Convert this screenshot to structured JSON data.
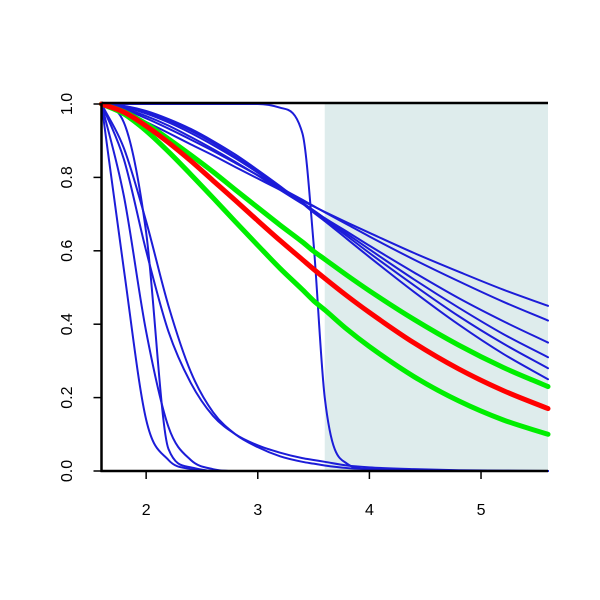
{
  "chart_data": {
    "type": "line",
    "x": [
      1.6,
      1.8,
      2.0,
      2.2,
      2.4,
      2.6,
      2.8,
      3.0,
      3.2,
      3.4,
      3.5,
      3.6,
      3.8,
      4.0,
      4.4,
      4.8,
      5.2,
      5.6
    ],
    "xlim": [
      1.6,
      5.6
    ],
    "xticks": [
      2,
      3,
      4,
      5
    ],
    "ylim": [
      0,
      1
    ],
    "yticks": [
      {
        "value": 0,
        "label": "0.0"
      },
      0.2,
      0.4,
      0.6,
      0.8,
      {
        "value": 1,
        "label": "1.0"
      }
    ],
    "shaded_region": {
      "xlim": [
        3.6,
        5.6
      ],
      "color": "#deecec"
    },
    "series": [
      {
        "color": "#1c1cd8",
        "width": 2,
        "values": [
          1,
          0.55,
          0.14,
          0.03,
          0.005,
          0,
          0,
          0,
          0,
          0,
          0,
          0,
          0,
          0,
          0,
          0,
          0,
          0
        ]
      },
      {
        "color": "#1c1cd8",
        "width": 2,
        "values": [
          1,
          0.75,
          0.38,
          0.12,
          0.03,
          0.005,
          0,
          0,
          0,
          0,
          0,
          0,
          0,
          0,
          0,
          0,
          0,
          0
        ]
      },
      {
        "color": "#1c1cd8",
        "width": 2,
        "values": [
          1,
          0.85,
          0.6,
          0.38,
          0.24,
          0.15,
          0.1,
          0.07,
          0.05,
          0.035,
          0.03,
          0.025,
          0.015,
          0.01,
          0.005,
          0.002,
          0.001,
          0
        ]
      },
      {
        "color": "#1c1cd8",
        "width": 2,
        "values": [
          1,
          0.88,
          0.68,
          0.45,
          0.27,
          0.16,
          0.1,
          0.065,
          0.04,
          0.025,
          0.02,
          0.015,
          0.008,
          0.005,
          0.001,
          0,
          0,
          0
        ]
      },
      {
        "color": "#1c1cd8",
        "width": 2,
        "values": [
          1,
          0.95,
          0.65,
          0.06,
          0.01,
          0,
          0,
          0,
          0,
          0,
          0,
          0,
          0,
          0,
          0,
          0,
          0,
          0
        ]
      },
      {
        "color": "#1c1cd8",
        "width": 2,
        "values": [
          1,
          1,
          1,
          1,
          1,
          1,
          1,
          1,
          0.99,
          0.92,
          0.62,
          0.2,
          0.02,
          0.005,
          0.001,
          0,
          0,
          0
        ]
      },
      {
        "color": "#1c1cd8",
        "width": 2,
        "values": [
          1,
          0.978,
          0.951,
          0.921,
          0.89,
          0.86,
          0.828,
          0.797,
          0.766,
          0.736,
          0.721,
          0.706,
          0.677,
          0.649,
          0.594,
          0.543,
          0.494,
          0.45
        ]
      },
      {
        "color": "#1c1cd8",
        "width": 2,
        "values": [
          1,
          0.985,
          0.961,
          0.933,
          0.903,
          0.872,
          0.839,
          0.806,
          0.772,
          0.739,
          0.722,
          0.705,
          0.672,
          0.639,
          0.576,
          0.517,
          0.461,
          0.41
        ]
      },
      {
        "color": "#1c1cd8",
        "width": 2,
        "values": [
          1,
          0.988,
          0.967,
          0.941,
          0.91,
          0.877,
          0.842,
          0.805,
          0.766,
          0.728,
          0.71,
          0.689,
          0.652,
          0.614,
          0.541,
          0.471,
          0.408,
          0.35
        ]
      },
      {
        "color": "#1c1cd8",
        "width": 2,
        "values": [
          1,
          0.992,
          0.974,
          0.95,
          0.921,
          0.888,
          0.852,
          0.813,
          0.772,
          0.731,
          0.71,
          0.688,
          0.646,
          0.604,
          0.522,
          0.445,
          0.373,
          0.31
        ]
      },
      {
        "color": "#1c1cd8",
        "width": 2,
        "values": [
          1,
          0.993,
          0.978,
          0.955,
          0.927,
          0.894,
          0.856,
          0.817,
          0.774,
          0.731,
          0.708,
          0.685,
          0.64,
          0.594,
          0.506,
          0.422,
          0.347,
          0.28
        ]
      },
      {
        "color": "#1c1cd8",
        "width": 2,
        "values": [
          1,
          0.995,
          0.981,
          0.959,
          0.932,
          0.899,
          0.862,
          0.82,
          0.776,
          0.729,
          0.704,
          0.681,
          0.632,
          0.583,
          0.488,
          0.399,
          0.319,
          0.25
        ]
      },
      {
        "color": "#00ee00",
        "width": 5,
        "values": [
          1,
          0.979,
          0.946,
          0.905,
          0.861,
          0.815,
          0.766,
          0.718,
          0.67,
          0.624,
          0.599,
          0.577,
          0.533,
          0.491,
          0.413,
          0.343,
          0.282,
          0.23
        ]
      },
      {
        "color": "#00ee00",
        "width": 5,
        "values": [
          1,
          0.973,
          0.927,
          0.87,
          0.808,
          0.744,
          0.679,
          0.615,
          0.552,
          0.494,
          0.464,
          0.439,
          0.386,
          0.339,
          0.257,
          0.191,
          0.139,
          0.1
        ]
      },
      {
        "color": "#ff0000",
        "width": 5,
        "values": [
          1,
          0.978,
          0.94,
          0.895,
          0.845,
          0.791,
          0.737,
          0.682,
          0.628,
          0.576,
          0.55,
          0.525,
          0.477,
          0.432,
          0.349,
          0.278,
          0.219,
          0.17
        ]
      }
    ]
  }
}
